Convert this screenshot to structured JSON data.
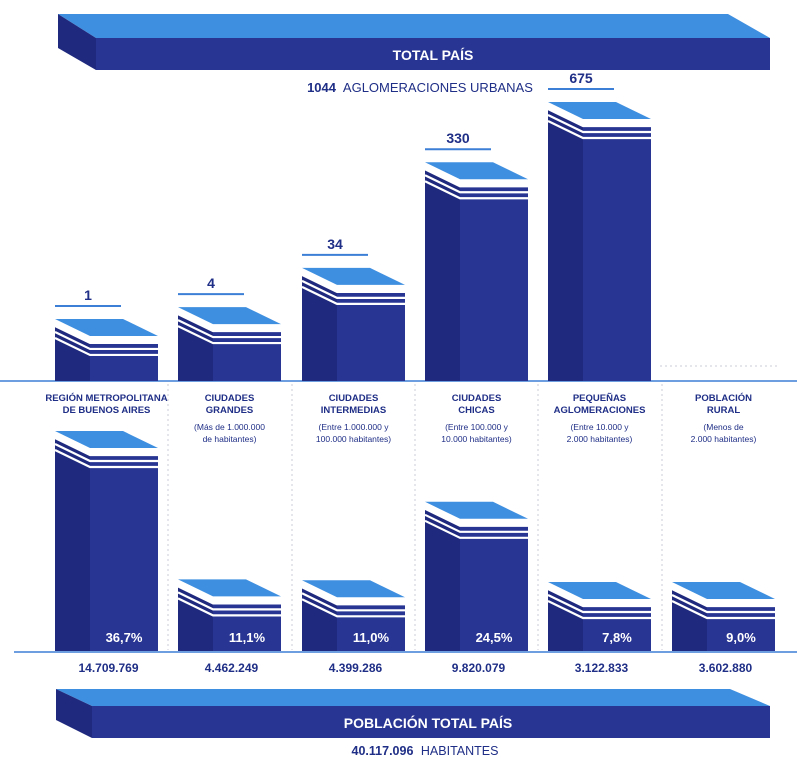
{
  "colors": {
    "bar_front": "#283593",
    "bar_side": "#1f2a7e",
    "bar_top": "#3f8fe0",
    "bar_top_light": "#6cb8f2",
    "stripe": "#ffffff",
    "text_dark": "#1f2e86",
    "line": "#3b7fd6",
    "guide": "#c9cdd8"
  },
  "header": {
    "title": "TOTAL PAÍS",
    "subtitle_count": "1044",
    "subtitle_text": "AGLOMERACIONES URBANAS"
  },
  "footer": {
    "title": "POBLACIÓN TOTAL PAÍS",
    "total_number": "40.117.096",
    "total_unit": "HABITANTES"
  },
  "chart_data": {
    "type": "bar",
    "categories": [
      "REGIÓN METROPOLITANA DE BUENOS AIRES",
      "CIUDADES GRANDES",
      "CIUDADES INTERMEDIAS",
      "CIUDADES CHICAS",
      "PEQUEÑAS AGLOMERACIONES",
      "POBLACIÓN RURAL"
    ],
    "category_lines": [
      [
        "REGIÓN METROPOLITANA",
        "DE BUENOS AIRES"
      ],
      [
        "CIUDADES",
        "GRANDES"
      ],
      [
        "CIUDADES",
        "INTERMEDIAS"
      ],
      [
        "CIUDADES",
        "CHICAS"
      ],
      [
        "PEQUEÑAS",
        "AGLOMERACIONES"
      ],
      [
        "POBLACIÓN",
        "RURAL"
      ]
    ],
    "category_notes": [
      [],
      [
        "(Más de 1.000.000",
        "de habitantes)"
      ],
      [
        "(Entre 1.000.000 y",
        "100.000 habitantes)"
      ],
      [
        "(Entre 100.000 y",
        "10.000 habitantes)"
      ],
      [
        "(Entre 10.000 y",
        "2.000 habitantes)"
      ],
      [
        "(Menos de",
        "2.000 habitantes)"
      ]
    ],
    "series": [
      {
        "name": "aglomeraciones",
        "values": [
          1,
          4,
          34,
          330,
          675,
          null
        ],
        "labels": [
          "1",
          "4",
          "34",
          "330",
          "675",
          ""
        ]
      },
      {
        "name": "población",
        "values": [
          14709769,
          4462249,
          4399286,
          9820079,
          3122833,
          3602880
        ],
        "labels": [
          "14.709.769",
          "4.462.249",
          "4.399.286",
          "9.820.079",
          "3.122.833",
          "3.602.880"
        ],
        "percent": [
          36.7,
          11.1,
          11.0,
          24.5,
          7.8,
          9.0
        ],
        "percent_labels": [
          "36,7%",
          "11,1%",
          "11,0%",
          "24,5%",
          "7,8%",
          "9,0%"
        ]
      }
    ]
  }
}
